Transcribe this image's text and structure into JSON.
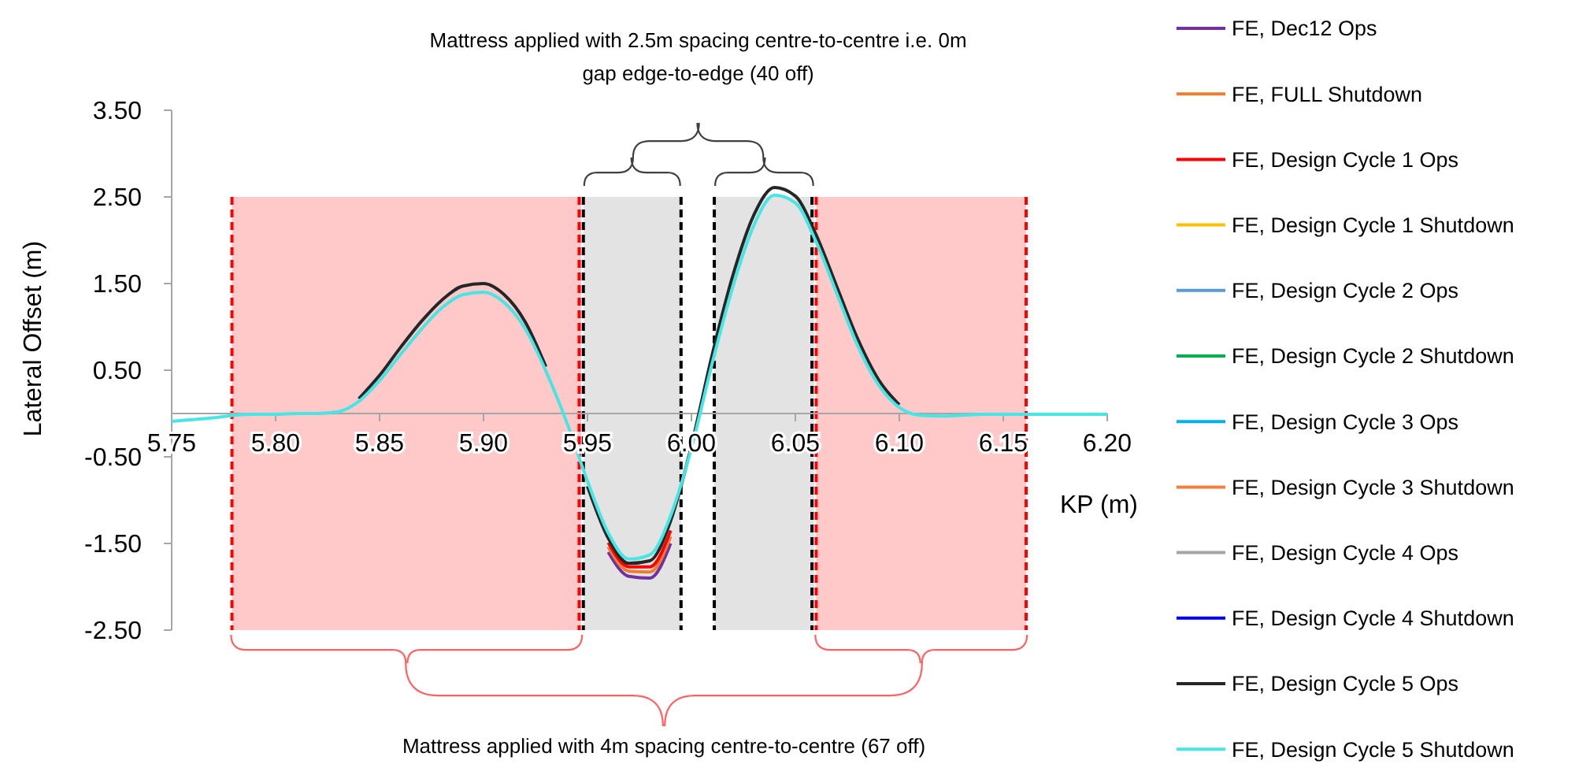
{
  "chart_data": {
    "type": "line",
    "xlabel": "KP (m)",
    "ylabel": "Lateral Offset (m)",
    "legend": "right",
    "annotations": [
      "Mattress applied with 2.5m spacing centre-to-centre  i.e. 0m\ngap edge-to-edge (40 off)",
      "Mattress applied with 4m spacing centre-to-centre  (67 off)"
    ],
    "xlim": [
      5.75,
      6.2
    ],
    "ylim": [
      -2.5,
      3.5
    ],
    "xticks": [
      {
        "value": 5.75,
        "label": "5.75"
      },
      {
        "value": 5.8,
        "label": "5.80"
      },
      {
        "value": 5.85,
        "label": "5.85"
      },
      {
        "value": 5.9,
        "label": "5.90"
      },
      {
        "value": 5.95,
        "label": "5.95"
      },
      {
        "value": 6.0,
        "label": "6.00"
      },
      {
        "value": 6.05,
        "label": "6.05"
      },
      {
        "value": 6.1,
        "label": "6.10"
      },
      {
        "value": 6.15,
        "label": "6.15"
      },
      {
        "value": 6.2,
        "label": "6.20"
      }
    ],
    "yticks": [
      {
        "value": 3.5,
        "label": "3.50"
      },
      {
        "value": 2.5,
        "label": "2.50"
      },
      {
        "value": 1.5,
        "label": "1.50"
      },
      {
        "value": 0.5,
        "label": "0.50"
      },
      {
        "value": -0.5,
        "label": "-0.50"
      },
      {
        "value": -1.5,
        "label": "-1.50"
      },
      {
        "value": -2.5,
        "label": "-2.50"
      }
    ],
    "bands": [
      {
        "axis": "x",
        "from": 5.779,
        "to": 5.947,
        "color": "#ffc9c9"
      },
      {
        "axis": "x",
        "from": 5.948,
        "to": 5.995,
        "color": "#e3e3e3"
      },
      {
        "axis": "x",
        "from": 6.011,
        "to": 6.059,
        "color": "#e3e3e3"
      },
      {
        "axis": "x",
        "from": 6.06,
        "to": 6.161,
        "color": "#ffc9c9"
      }
    ],
    "ref_lines": [
      {
        "axis": "x",
        "value": 5.779,
        "color": "#ff0000",
        "line_style": "dashed"
      },
      {
        "axis": "x",
        "value": 5.946,
        "color": "#ff0000",
        "line_style": "dashed"
      },
      {
        "axis": "x",
        "value": 5.948,
        "color": "#000000",
        "line_style": "dashed"
      },
      {
        "axis": "x",
        "value": 5.995,
        "color": "#000000",
        "line_style": "dashed"
      },
      {
        "axis": "x",
        "value": 6.011,
        "color": "#000000",
        "line_style": "dashed"
      },
      {
        "axis": "x",
        "value": 6.058,
        "color": "#000000",
        "line_style": "dashed"
      },
      {
        "axis": "x",
        "value": 6.06,
        "color": "#ff0000",
        "line_style": "dashed"
      },
      {
        "axis": "x",
        "value": 6.161,
        "color": "#ff0000",
        "line_style": "dashed"
      }
    ],
    "x": [
      5.75,
      5.76,
      5.77,
      5.78,
      5.79,
      5.8,
      5.81,
      5.82,
      5.83,
      5.84,
      5.85,
      5.86,
      5.87,
      5.88,
      5.89,
      5.9,
      5.91,
      5.92,
      5.93,
      5.94,
      5.95,
      5.96,
      5.97,
      5.98,
      5.99,
      6.0,
      6.01,
      6.02,
      6.03,
      6.04,
      6.05,
      6.06,
      6.07,
      6.08,
      6.09,
      6.1,
      6.11,
      6.12,
      6.13,
      6.14,
      6.15,
      6.16,
      6.17,
      6.18,
      6.19,
      6.2
    ],
    "series": [
      {
        "name": "FE, Dec12 Ops",
        "color": "#7030a0",
        "values": [
          null,
          null,
          null,
          null,
          null,
          null,
          null,
          null,
          null,
          null,
          null,
          null,
          null,
          null,
          null,
          null,
          null,
          null,
          null,
          null,
          null,
          -1.6,
          -1.88,
          -1.9,
          -1.5,
          null,
          null,
          null,
          null,
          null,
          null,
          null,
          null,
          null,
          null,
          null,
          null,
          null,
          null,
          null,
          null,
          null,
          null,
          null,
          null,
          null
        ]
      },
      {
        "name": "FE, FULL Shutdown",
        "color": "#ed7d31",
        "values": [
          null,
          null,
          null,
          null,
          null,
          null,
          null,
          null,
          null,
          null,
          null,
          null,
          null,
          null,
          null,
          null,
          null,
          null,
          null,
          null,
          null,
          -1.54,
          -1.82,
          -1.83,
          -1.42,
          null,
          null,
          null,
          null,
          null,
          null,
          null,
          null,
          null,
          null,
          null,
          null,
          null,
          null,
          null,
          null,
          null,
          null,
          null,
          null,
          null
        ]
      },
      {
        "name": "FE, Design Cycle 1 Ops",
        "color": "#ff0000",
        "values": [
          null,
          null,
          null,
          null,
          null,
          null,
          null,
          null,
          null,
          null,
          null,
          null,
          null,
          null,
          null,
          null,
          null,
          null,
          null,
          null,
          null,
          -1.49,
          -1.77,
          -1.77,
          -1.35,
          null,
          null,
          null,
          null,
          null,
          null,
          null,
          null,
          null,
          null,
          null,
          null,
          null,
          null,
          null,
          null,
          null,
          null,
          null,
          null,
          null
        ]
      },
      {
        "name": "FE, Design Cycle 1 Shutdown",
        "color": "#ffc000",
        "values": [
          null,
          null,
          null,
          null,
          null,
          null,
          null,
          null,
          null,
          null,
          null,
          null,
          null,
          null,
          null,
          null,
          null,
          null,
          null,
          null,
          null,
          null,
          null,
          null,
          null,
          null,
          null,
          null,
          null,
          null,
          null,
          null,
          null,
          null,
          null,
          null,
          null,
          null,
          null,
          null,
          null,
          null,
          null,
          null,
          null,
          null
        ]
      },
      {
        "name": "FE, Design Cycle 2 Ops",
        "color": "#5b9bd5",
        "values": [
          null,
          null,
          null,
          null,
          null,
          null,
          null,
          null,
          null,
          null,
          null,
          null,
          null,
          null,
          null,
          null,
          null,
          null,
          null,
          null,
          null,
          null,
          null,
          null,
          null,
          null,
          null,
          null,
          null,
          null,
          null,
          null,
          null,
          null,
          null,
          null,
          null,
          null,
          null,
          null,
          null,
          null,
          null,
          null,
          null,
          null
        ]
      },
      {
        "name": "FE, Design Cycle 2 Shutdown",
        "color": "#00b050",
        "values": [
          null,
          null,
          null,
          null,
          null,
          null,
          null,
          null,
          null,
          null,
          null,
          null,
          null,
          null,
          null,
          null,
          null,
          null,
          null,
          null,
          null,
          null,
          null,
          null,
          null,
          null,
          null,
          null,
          null,
          null,
          null,
          null,
          null,
          null,
          null,
          null,
          null,
          null,
          null,
          null,
          null,
          null,
          null,
          null,
          null,
          null
        ]
      },
      {
        "name": "FE, Design Cycle 3 Ops",
        "color": "#00b0f0",
        "values": [
          null,
          null,
          null,
          null,
          null,
          null,
          null,
          null,
          null,
          null,
          null,
          null,
          null,
          null,
          null,
          null,
          null,
          null,
          null,
          null,
          null,
          null,
          null,
          null,
          null,
          null,
          null,
          null,
          null,
          null,
          null,
          null,
          null,
          null,
          null,
          null,
          null,
          null,
          null,
          null,
          null,
          null,
          null,
          null,
          null,
          null
        ]
      },
      {
        "name": "FE, Design Cycle 3 Shutdown",
        "color": "#f4803c",
        "values": [
          null,
          null,
          null,
          null,
          null,
          null,
          null,
          null,
          null,
          null,
          null,
          null,
          null,
          null,
          null,
          null,
          null,
          null,
          null,
          null,
          null,
          null,
          null,
          null,
          null,
          null,
          null,
          null,
          null,
          null,
          null,
          null,
          null,
          null,
          null,
          null,
          null,
          null,
          null,
          null,
          null,
          null,
          null,
          null,
          null,
          null
        ]
      },
      {
        "name": "FE, Design Cycle 4 Ops",
        "color": "#a5a5a5",
        "values": [
          null,
          null,
          null,
          null,
          null,
          null,
          null,
          null,
          null,
          null,
          null,
          null,
          null,
          null,
          null,
          null,
          null,
          null,
          null,
          null,
          null,
          null,
          null,
          null,
          null,
          null,
          null,
          null,
          null,
          null,
          null,
          null,
          null,
          null,
          null,
          null,
          null,
          null,
          null,
          null,
          null,
          null,
          null,
          null,
          null,
          null
        ]
      },
      {
        "name": "FE, Design Cycle 4 Shutdown",
        "color": "#0000ff",
        "values": [
          null,
          null,
          null,
          null,
          null,
          null,
          null,
          null,
          null,
          null,
          null,
          null,
          null,
          null,
          null,
          null,
          null,
          null,
          null,
          null,
          null,
          null,
          null,
          null,
          null,
          null,
          null,
          null,
          null,
          null,
          null,
          null,
          null,
          null,
          null,
          null,
          null,
          null,
          null,
          null,
          null,
          null,
          null,
          null,
          null,
          null
        ]
      },
      {
        "name": "FE, Design Cycle 5 Ops",
        "color": "#262626",
        "values": [
          null,
          null,
          null,
          null,
          null,
          null,
          null,
          null,
          null,
          0.17,
          0.44,
          0.76,
          1.06,
          1.31,
          1.47,
          1.5,
          1.37,
          1.06,
          0.54,
          null,
          -0.84,
          -1.44,
          -1.73,
          -1.7,
          -1.24,
          -0.37,
          0.68,
          1.6,
          2.29,
          2.61,
          2.51,
          2.06,
          1.46,
          0.86,
          0.39,
          0.1,
          null,
          null,
          null,
          null,
          null,
          null,
          null,
          null,
          null,
          null
        ]
      },
      {
        "name": "FE, Design Cycle 5 Shutdown",
        "color": "#48e5e5",
        "values": [
          -0.09,
          -0.07,
          -0.05,
          -0.02,
          -0.01,
          -0.01,
          0,
          0,
          0.02,
          0.14,
          0.38,
          0.68,
          0.97,
          1.22,
          1.37,
          1.4,
          1.28,
          0.98,
          0.49,
          -0.1,
          -0.78,
          -1.38,
          -1.68,
          -1.63,
          -1.18,
          -0.4,
          0.58,
          1.47,
          2.17,
          2.52,
          2.43,
          1.98,
          1.38,
          0.78,
          0.33,
          0.07,
          -0.02,
          -0.03,
          -0.02,
          -0.01,
          -0.01,
          -0.01,
          -0.01,
          -0.01,
          -0.01,
          -0.01
        ]
      }
    ]
  }
}
